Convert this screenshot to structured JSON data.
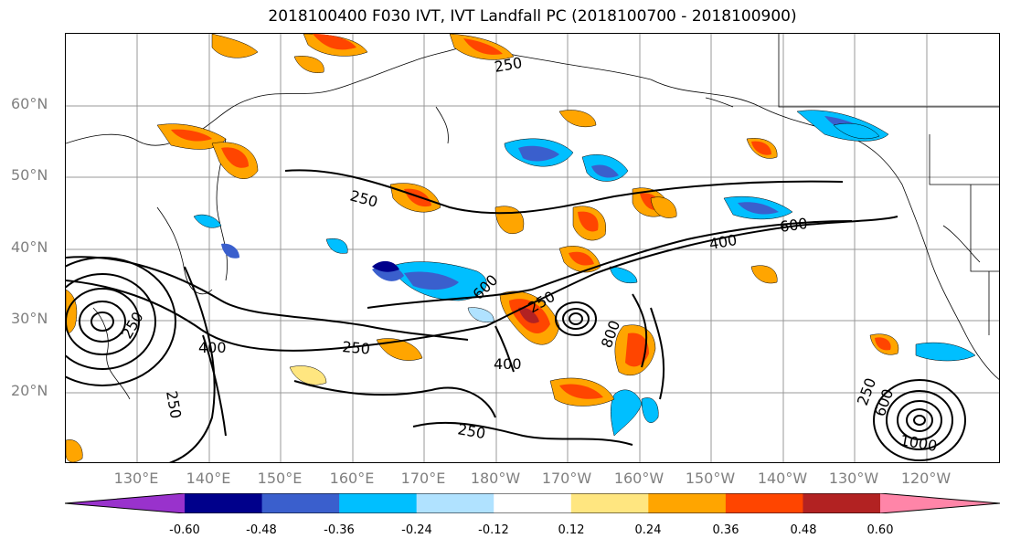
{
  "title": "2018100400 F030 IVT, IVT Landfall PC (2018100700 - 2018100900)",
  "lat_labels": [
    "60°N",
    "50°N",
    "40°N",
    "30°N",
    "20°N"
  ],
  "lon_labels": [
    "130°E",
    "140°E",
    "150°E",
    "160°E",
    "170°E",
    "180°W",
    "170°W",
    "160°W",
    "150°W",
    "140°W",
    "130°W",
    "120°W"
  ],
  "contour_labels": [
    "250",
    "250",
    "250",
    "250",
    "250",
    "250",
    "400",
    "400",
    "400",
    "600",
    "600",
    "800",
    "250",
    "600",
    "1000",
    "250"
  ],
  "colorbar": {
    "tick_labels": [
      "-0.60",
      "-0.48",
      "-0.36",
      "-0.24",
      "-0.12",
      "0.12",
      "0.24",
      "0.36",
      "0.48",
      "0.60"
    ],
    "colors": [
      "#9932cc",
      "#00008b",
      "#3a5fcd",
      "#00bfff",
      "#b0e2ff",
      "#ffffff",
      "#ffe680",
      "#ffa500",
      "#ff4500",
      "#b22222",
      "#ff85a8"
    ]
  }
}
